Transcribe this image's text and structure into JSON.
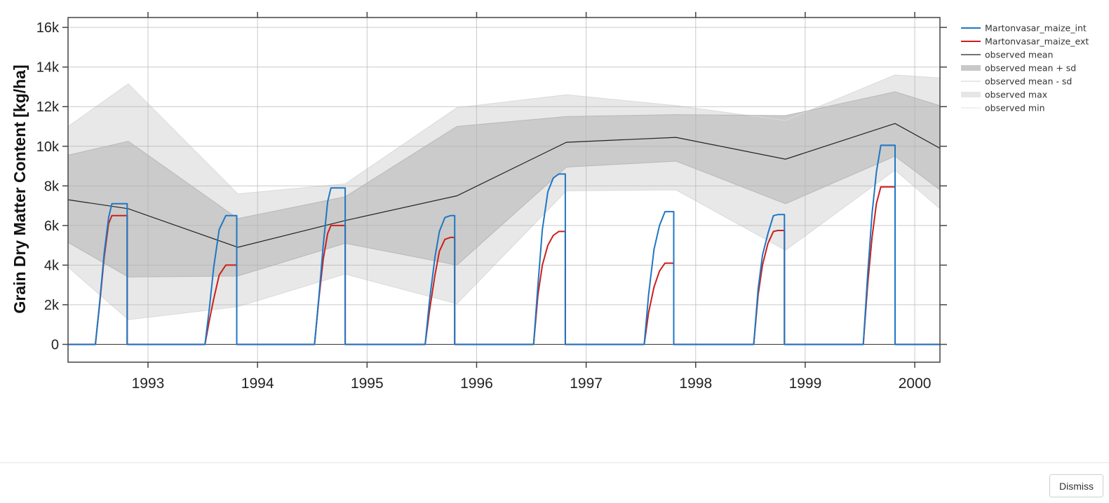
{
  "chart_data": {
    "type": "line",
    "title": "",
    "xlabel": "",
    "ylabel": "Grain Dry Matter Content [kg/ha]",
    "xlim": [
      1992.27,
      2000.23
    ],
    "ylim": [
      -900,
      16500
    ],
    "x_ticks": [
      1993,
      1994,
      1995,
      1996,
      1997,
      1998,
      1999,
      2000
    ],
    "x_tick_labels": [
      "1993",
      "1994",
      "1995",
      "1996",
      "1997",
      "1998",
      "1999",
      "2000"
    ],
    "y_ticks": [
      0,
      2000,
      4000,
      6000,
      8000,
      10000,
      12000,
      14000,
      16000
    ],
    "y_tick_labels": [
      "0",
      "2k",
      "4k",
      "6k",
      "8k",
      "10k",
      "12k",
      "14k",
      "16k"
    ],
    "grid": true,
    "legend_position": "right",
    "observed": {
      "x": [
        1992.27,
        1992.82,
        1993.82,
        1994.8,
        1995.82,
        1996.82,
        1997.82,
        1998.82,
        1999.82,
        2000.23
      ],
      "mean": [
        7300,
        6850,
        4900,
        6250,
        7500,
        10200,
        10450,
        9350,
        11150,
        9900
      ],
      "mean_plus_sd": [
        9550,
        10250,
        6350,
        7450,
        11000,
        11500,
        11600,
        11550,
        12750,
        12050
      ],
      "mean_minus_sd": [
        5150,
        3400,
        3450,
        5100,
        4000,
        8950,
        9250,
        7100,
        9500,
        7800
      ],
      "max": [
        11000,
        13150,
        7600,
        8100,
        11950,
        12600,
        12050,
        11300,
        13600,
        13450
      ],
      "min": [
        3900,
        1250,
        1900,
        3550,
        2050,
        7750,
        7800,
        4750,
        8800,
        6850
      ]
    },
    "simulated_seasons": [
      {
        "start": 1992.52,
        "end": 1992.81,
        "x": [
          1992.52,
          1992.56,
          1992.6,
          1992.64,
          1992.67,
          1992.7
        ],
        "int": [
          0,
          2200,
          4600,
          6400,
          7100,
          7100
        ],
        "ext": [
          0,
          2100,
          4400,
          6100,
          6500,
          6500
        ]
      },
      {
        "start": 1993.52,
        "end": 1993.81,
        "x": [
          1993.52,
          1993.56,
          1993.6,
          1993.65,
          1993.71,
          1993.76
        ],
        "int": [
          0,
          1800,
          3900,
          5800,
          6500,
          6500
        ],
        "ext": [
          0,
          1200,
          2300,
          3500,
          4000,
          4000
        ]
      },
      {
        "start": 1994.52,
        "end": 1994.8,
        "x": [
          1994.52,
          1994.56,
          1994.6,
          1994.64,
          1994.67,
          1994.7
        ],
        "int": [
          0,
          2400,
          5000,
          7200,
          7900,
          7900
        ],
        "ext": [
          0,
          2300,
          4300,
          5600,
          6000,
          6000
        ]
      },
      {
        "start": 1995.53,
        "end": 1995.8,
        "x": [
          1995.53,
          1995.57,
          1995.62,
          1995.66,
          1995.71,
          1995.76
        ],
        "int": [
          0,
          2200,
          4400,
          5700,
          6400,
          6500
        ],
        "ext": [
          0,
          1700,
          3500,
          4700,
          5300,
          5400
        ]
      },
      {
        "start": 1996.52,
        "end": 1996.81,
        "x": [
          1996.52,
          1996.56,
          1996.6,
          1996.65,
          1996.7,
          1996.75
        ],
        "int": [
          0,
          3000,
          5800,
          7700,
          8400,
          8600
        ],
        "ext": [
          0,
          2500,
          4000,
          5000,
          5500,
          5700
        ]
      },
      {
        "start": 1997.53,
        "end": 1997.8,
        "x": [
          1997.53,
          1997.57,
          1997.62,
          1997.67,
          1997.72,
          1997.76
        ],
        "int": [
          0,
          2500,
          4800,
          6000,
          6700,
          6700
        ],
        "ext": [
          0,
          1600,
          2900,
          3700,
          4100,
          4100
        ]
      },
      {
        "start": 1998.53,
        "end": 1998.81,
        "x": [
          1998.53,
          1998.57,
          1998.61,
          1998.66,
          1998.71,
          1998.75
        ],
        "int": [
          0,
          2800,
          4500,
          5600,
          6500,
          6550
        ],
        "ext": [
          0,
          2500,
          4000,
          5100,
          5700,
          5750
        ]
      },
      {
        "start": 1999.53,
        "end": 1999.82,
        "x": [
          1999.53,
          1999.57,
          1999.61,
          1999.65,
          1999.69,
          1999.73
        ],
        "int": [
          0,
          3500,
          6600,
          8700,
          10050,
          10050
        ],
        "ext": [
          0,
          3000,
          5400,
          7100,
          7950,
          7950
        ]
      }
    ],
    "series": [
      {
        "name": "Martonvasar_maize_int",
        "color": "#1f77c4"
      },
      {
        "name": "Martonvasar_maize_ext",
        "color": "#cc1f1a"
      },
      {
        "name": "observed mean",
        "color": "#222222"
      },
      {
        "name": "observed mean + sd",
        "color": "#c8c8c8"
      },
      {
        "name": "observed mean - sd",
        "color": "#c8c8c8"
      },
      {
        "name": "observed max",
        "color": "#e4e4e4"
      },
      {
        "name": "observed min",
        "color": "#e4e4e4"
      }
    ]
  },
  "footer": {
    "dismiss_label": "Dismiss"
  }
}
